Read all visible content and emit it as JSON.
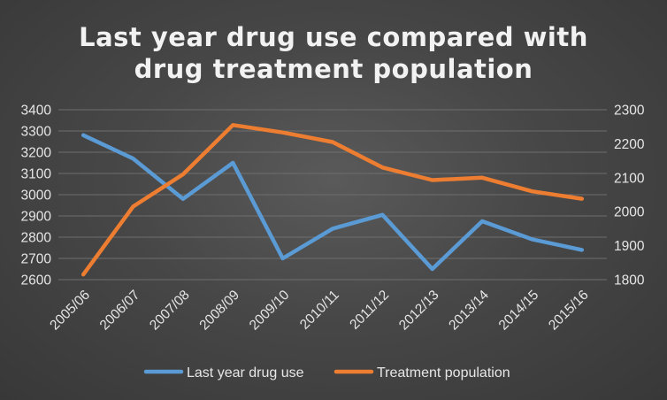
{
  "chart_data": {
    "type": "line",
    "title": [
      "Last year drug use compared with",
      "drug treatment population"
    ],
    "categories": [
      "2005/06",
      "2006/07",
      "2007/08",
      "2008/09",
      "2009/10",
      "2010/11",
      "2011/12",
      "2012/13",
      "2013/14",
      "2014/15",
      "2015/16"
    ],
    "series": [
      {
        "name": "Last year drug use",
        "axis": "left",
        "color": "#5b9bd5",
        "values": [
          3280,
          3170,
          2980,
          3150,
          2700,
          2840,
          2905,
          2650,
          2875,
          2790,
          2740
        ]
      },
      {
        "name": "Treatment population",
        "axis": "right",
        "color": "#ed7d31",
        "values": [
          1815,
          2015,
          2110,
          2255,
          2233,
          2205,
          2130,
          2093,
          2100,
          2060,
          2038
        ]
      }
    ],
    "y_left": {
      "min": 2600,
      "max": 3400,
      "step": 100
    },
    "y_right": {
      "min": 1800,
      "max": 2300,
      "step": 100
    },
    "grid": true,
    "legend": "bottom"
  }
}
